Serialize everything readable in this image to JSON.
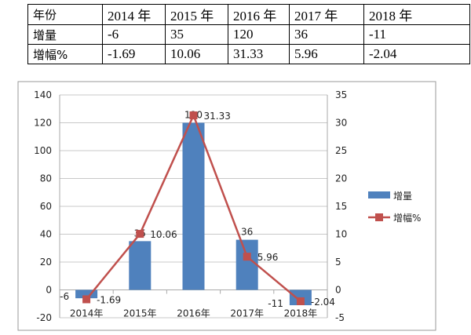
{
  "table": {
    "header": [
      "年份",
      "2014 年",
      "2015 年",
      "2016 年",
      "2017 年",
      "2018 年"
    ],
    "rows": [
      [
        "增量",
        "-6",
        "35",
        "120",
        "36",
        "-11"
      ],
      [
        "增幅%",
        "-1.69",
        "10.06",
        "31.33",
        "5.96",
        "-2.04"
      ]
    ]
  },
  "chart_data": {
    "type": "bar+line",
    "categories": [
      "2014年",
      "2015年",
      "2016年",
      "2017年",
      "2018年"
    ],
    "series": [
      {
        "name": "增量",
        "type": "bar",
        "axis": "left",
        "values": [
          -6,
          35,
          120,
          36,
          -11
        ],
        "labels": [
          "-6",
          "35",
          "120",
          "36",
          "-11"
        ],
        "color": "#4f81bd"
      },
      {
        "name": "增幅%",
        "type": "line",
        "axis": "right",
        "values": [
          -1.69,
          10.06,
          31.33,
          5.96,
          -2.04
        ],
        "labels": [
          "-1.69",
          "10.06",
          "31.33",
          "5.96",
          "-2.04"
        ],
        "color": "#c0504d"
      }
    ],
    "y_left": {
      "range": [
        -20,
        140
      ],
      "ticks": [
        "-20",
        "0",
        "20",
        "40",
        "60",
        "80",
        "100",
        "120",
        "140"
      ]
    },
    "y_right": {
      "range": [
        -5,
        35
      ],
      "ticks": [
        "-5",
        "0",
        "5",
        "10",
        "15",
        "20",
        "25",
        "30",
        "35"
      ]
    },
    "grid": true,
    "legend": "right"
  }
}
